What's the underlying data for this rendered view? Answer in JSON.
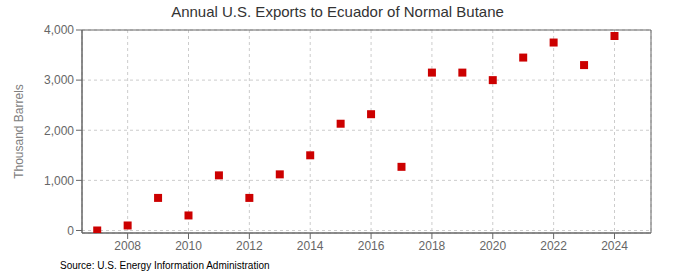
{
  "chart_data": {
    "type": "scatter",
    "title": "Annual U.S. Exports to Ecuador of Normal Butane",
    "y_label": "Thousand Barrels",
    "annotations": [
      "Source: U.S. Energy Information Administration"
    ],
    "x": [
      2007,
      2008,
      2009,
      2010,
      2011,
      2012,
      2013,
      2014,
      2015,
      2016,
      2017,
      2018,
      2019,
      2020,
      2021,
      2022,
      2023,
      2024
    ],
    "values": [
      0,
      100,
      650,
      300,
      1100,
      650,
      1120,
      1500,
      2130,
      2320,
      1270,
      3150,
      3150,
      3000,
      3450,
      3750,
      3300,
      3880
    ],
    "color": "#cc0000",
    "marker": "square",
    "xlim": [
      2006.5,
      2025.2
    ],
    "ylim": [
      -50,
      4000
    ],
    "xticks": [
      2008,
      2010,
      2012,
      2014,
      2016,
      2018,
      2020,
      2022,
      2024
    ],
    "yticks": [
      0,
      {
        "value": 1000,
        "label": "1,000"
      },
      {
        "value": 2000,
        "label": "2,000"
      },
      {
        "value": 3000,
        "label": "3,000"
      },
      {
        "value": 4000,
        "label": "4,000"
      }
    ],
    "grid": true
  }
}
